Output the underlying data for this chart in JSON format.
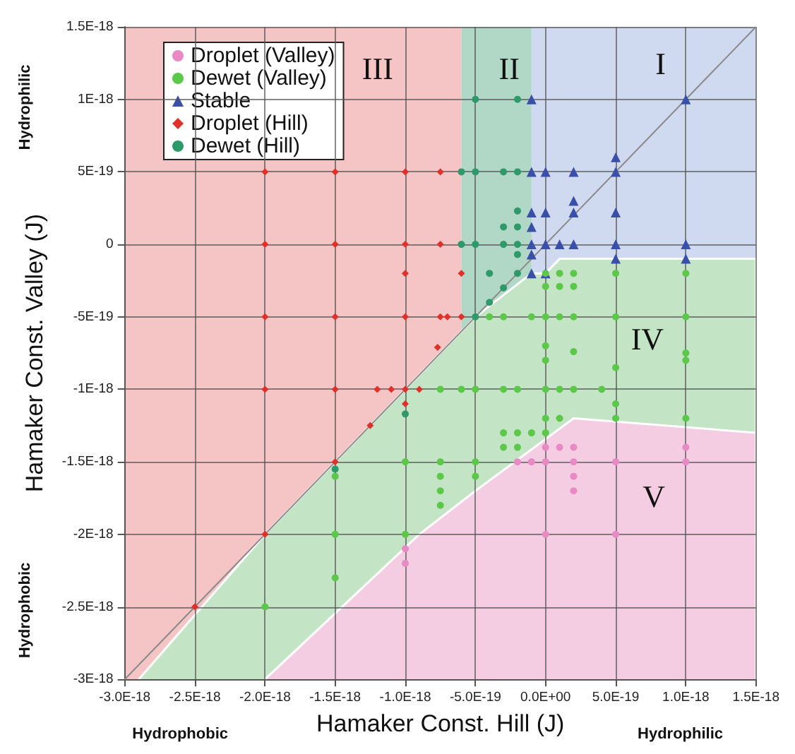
{
  "chart_data": {
    "type": "scatter",
    "xlabel": "Hamaker Const. Hill (J)",
    "ylabel": "Hamaker Const. Valley (J)",
    "xlim": [
      -3e-18,
      1.5e-18
    ],
    "ylim": [
      -3e-18,
      1.5e-18
    ],
    "xticks": [
      {
        "value": -3e-18,
        "label": "-3.0E-18"
      },
      {
        "value": -2.5e-18,
        "label": "-2.5E-18"
      },
      {
        "value": -2e-18,
        "label": "-2.0E-18"
      },
      {
        "value": -1.5e-18,
        "label": "-1.5E-18"
      },
      {
        "value": -1e-18,
        "label": "-1.0E-18"
      },
      {
        "value": -5e-19,
        "label": "-5.0E-19"
      },
      {
        "value": 0,
        "label": "0.0E+00"
      },
      {
        "value": 5e-19,
        "label": "5.0E-19"
      },
      {
        "value": 1e-18,
        "label": "1.0E-18"
      },
      {
        "value": 1.5e-18,
        "label": "1.5E-18"
      }
    ],
    "yticks": [
      {
        "value": -3e-18,
        "label": "-3E-18"
      },
      {
        "value": -2.5e-18,
        "label": "-2.5E-18"
      },
      {
        "value": -2e-18,
        "label": "-2E-18"
      },
      {
        "value": -1.5e-18,
        "label": "-1.5E-18"
      },
      {
        "value": -1e-18,
        "label": "-1E-18"
      },
      {
        "value": -5e-19,
        "label": "-5E-19"
      },
      0,
      {
        "value": 5e-19,
        "label": "5E-19"
      },
      {
        "value": 1e-18,
        "label": "1E-18"
      },
      {
        "value": 1.5e-18,
        "label": "1.5E-18"
      }
    ],
    "grid": true,
    "legend": "top left",
    "bands": [
      {
        "axis": "x",
        "from": -3e-18,
        "to": -6e-19,
        "color": "#f5c4c4"
      },
      {
        "axis": "x",
        "from": -6e-19,
        "to": -1e-19,
        "color": "#b1d8c6"
      },
      {
        "axis": "x",
        "from": -1e-19,
        "to": 1.5e-18,
        "color": "#cfd9f0"
      }
    ],
    "annotations": [
      "Hydrophobic",
      "Hydrophilic",
      "Hydrophilic",
      "Hydrophobic",
      "I",
      "II",
      "III",
      "IV",
      "V"
    ],
    "series": [
      {
        "type": "area",
        "color": "#c4e4c6",
        "x": [
          -2.9e-18,
          -2e-18,
          -9e-19,
          -8e-19,
          -5e-19,
          -1e-19,
          0,
          1e-19,
          2e-19,
          1.5e-18,
          1.5e-18
        ],
        "values": [
          -3e-18,
          -2e-18,
          -9e-19,
          -8e-19,
          -5e-19,
          -2e-19,
          -2e-19,
          -1e-19,
          -1e-19,
          -1e-19,
          -3e-18
        ]
      },
      {
        "type": "area",
        "color": "#f5cde3",
        "x": [
          -2e-18,
          -9e-19,
          -5e-19,
          2e-19,
          1.5e-18,
          1.5e-18
        ],
        "values": [
          -3e-18,
          -2e-18,
          -1.7e-18,
          -1.2e-18,
          -1.3e-18,
          -3e-18
        ]
      },
      {
        "type": "line",
        "color": "#8a8a8a",
        "marker": "none",
        "x": [
          -3e-18,
          1.5e-18
        ],
        "values": [
          -3e-18,
          1.5e-18
        ]
      },
      {
        "name": "Droplet (Valley)",
        "color": "#e88ac4",
        "marker": "circle",
        "x": [
          0,
          1e-19,
          2e-19,
          -2e-19,
          -1e-19,
          0,
          2e-19,
          5e-19,
          1e-18,
          1e-18,
          2e-19,
          2e-19,
          0,
          5e-19,
          -1e-18,
          -1e-18
        ],
        "values": [
          -1.4e-18,
          -1.4e-18,
          -1.4e-18,
          -1.5e-18,
          -1.5e-18,
          -1.5e-18,
          -1.5e-18,
          -1.5e-18,
          -1.5e-18,
          -1.4e-18,
          -1.6e-18,
          -1.7e-18,
          -2e-18,
          -2e-18,
          -2.1e-18,
          -2.2e-18
        ]
      },
      {
        "name": "Dewet (Valley)",
        "color": "#5cc84a",
        "marker": "circle",
        "x": [
          0,
          1e-19,
          2e-19,
          0,
          1e-19,
          2e-19,
          5e-19,
          1e-18,
          -4e-19,
          -3e-19,
          -1e-19,
          0,
          1e-19,
          2e-19,
          5e-19,
          1e-18,
          0,
          2e-19,
          0,
          5e-19,
          1e-18,
          1e-18,
          -7.5e-19,
          -6e-19,
          -5e-19,
          -3e-19,
          -2e-19,
          0,
          1e-19,
          2e-19,
          4e-19,
          5e-19,
          0,
          1e-19,
          5e-19,
          1e-18,
          -3e-19,
          -2e-19,
          -1e-19,
          0,
          -3e-19,
          -2e-19,
          -7.5e-19,
          -5e-19,
          -7.5e-19,
          -5e-19,
          -7.5e-19,
          -7.5e-19,
          -1e-18,
          -1.5e-18,
          -1e-18,
          -1.5e-18,
          -1.5e-18,
          -2e-18
        ],
        "values": [
          -2e-19,
          -2e-19,
          -2e-19,
          -2.9e-19,
          -2.9e-19,
          -2.9e-19,
          -2e-19,
          -2e-19,
          -5e-19,
          -5e-19,
          -5e-19,
          -5e-19,
          -5e-19,
          -5e-19,
          -5e-19,
          -5e-19,
          -7e-19,
          -7.4e-19,
          -8e-19,
          -8.5e-19,
          -8e-19,
          -7.5e-19,
          -1e-18,
          -1e-18,
          -1e-18,
          -1e-18,
          -1e-18,
          -1e-18,
          -1e-18,
          -1e-18,
          -1e-18,
          -1.1e-18,
          -1.2e-18,
          -1.2e-18,
          -1.2e-18,
          -1.2e-18,
          -1.3e-18,
          -1.3e-18,
          -1.3e-18,
          -1.3e-18,
          -1.4e-18,
          -1.4e-18,
          -1.5e-18,
          -1.5e-18,
          -1.6e-18,
          -1.6e-18,
          -1.7e-18,
          -1.8e-18,
          -1.5e-18,
          -1.6e-18,
          -2e-18,
          -2e-18,
          -2.3e-18,
          -2.5e-18
        ]
      },
      {
        "name": "Stable",
        "color": "#3a4fa8",
        "marker": "triangle",
        "x": [
          -1e-19,
          1e-18,
          -1e-19,
          0,
          2e-19,
          5e-19,
          5e-19,
          2e-19,
          -1e-19,
          0,
          2e-19,
          5e-19,
          -1e-19,
          -1e-19,
          0,
          1e-19,
          2e-19,
          5e-19,
          1e-18,
          -1e-19,
          5e-19,
          1e-18,
          -1e-19,
          0
        ],
        "values": [
          1e-18,
          1e-18,
          5e-19,
          5e-19,
          5e-19,
          5e-19,
          6e-19,
          3e-19,
          2.2e-19,
          2.2e-19,
          2.2e-19,
          2.2e-19,
          1.2e-19,
          0,
          0,
          0,
          0,
          0,
          0,
          -7e-20,
          -1e-19,
          -1e-19,
          -2e-19,
          -2e-19
        ]
      },
      {
        "name": "Droplet (Hill)",
        "color": "#e0302a",
        "marker": "diamond",
        "x": [
          -2e-18,
          -1.5e-18,
          -1e-18,
          -7.5e-19,
          -2e-18,
          -1.5e-18,
          -1e-18,
          -7.5e-19,
          -1e-18,
          -6e-19,
          -2e-18,
          -1.5e-18,
          -1e-18,
          -7.5e-19,
          -7e-19,
          -6e-19,
          -7.7e-19,
          -2e-18,
          -1.5e-18,
          -1.2e-18,
          -1.1e-18,
          -1e-18,
          -9e-19,
          -1e-18,
          -1.25e-18,
          -1.5e-18,
          -2e-18,
          -2.5e-18
        ],
        "values": [
          5e-19,
          5e-19,
          5e-19,
          5e-19,
          0,
          0,
          0,
          0,
          -2e-19,
          -2e-19,
          -5e-19,
          -5e-19,
          -5e-19,
          -5e-19,
          -5e-19,
          -5e-19,
          -7.1e-19,
          -1e-18,
          -1e-18,
          -1e-18,
          -1e-18,
          -1e-18,
          -1e-18,
          -1.1e-18,
          -1.25e-18,
          -1.5e-18,
          -2e-18,
          -2.5e-18
        ]
      },
      {
        "name": "Dewet (Hill)",
        "color": "#2e9a6a",
        "marker": "circle",
        "x": [
          -5e-19,
          -2e-19,
          -6e-19,
          -5e-19,
          -3e-19,
          -2e-19,
          -2e-19,
          -3e-19,
          -2e-19,
          -6e-19,
          -5e-19,
          -3e-19,
          -2e-19,
          -2e-19,
          -4e-19,
          -2e-19,
          -3e-19,
          -4e-19,
          -5e-19,
          -1e-18,
          -1.5e-18
        ],
        "values": [
          1e-18,
          1e-18,
          5e-19,
          5e-19,
          5e-19,
          5e-19,
          2.3e-19,
          1.2e-19,
          1.2e-19,
          0,
          0,
          0,
          0,
          -7e-20,
          -2e-19,
          -2e-19,
          -3e-19,
          -4e-19,
          -5e-19,
          -1.17e-18,
          -1.55e-18
        ]
      }
    ]
  }
}
